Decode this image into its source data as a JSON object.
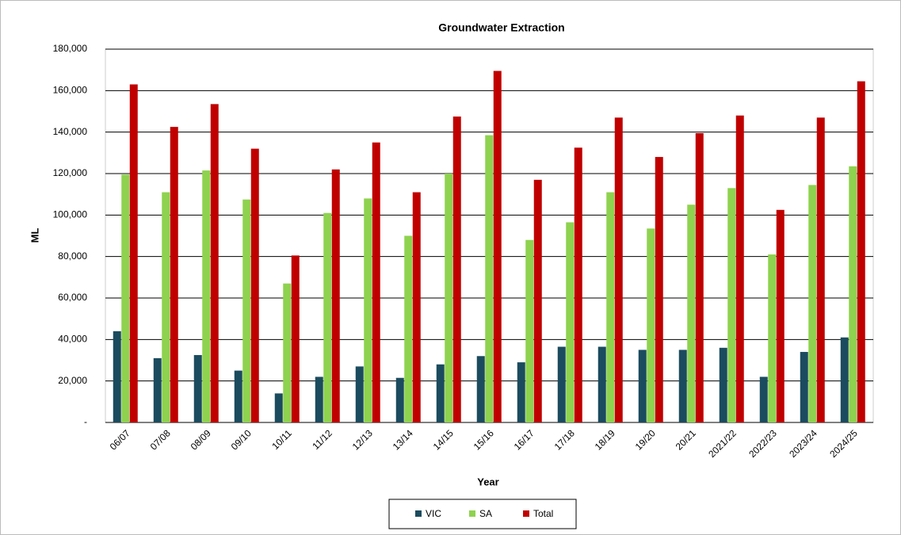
{
  "chart_data": {
    "type": "bar",
    "title": "Groundwater Extraction",
    "x_label": "Year",
    "y_label": "ML",
    "categories": [
      "06/07",
      "07/08",
      "08/09",
      "09/10",
      "10/11",
      "11/12",
      "12/13",
      "13/14",
      "14/15",
      "15/16",
      "16/17",
      "17/18",
      "18/19",
      "19/20",
      "20/21",
      "2021/22",
      "2022/23",
      "2023/24",
      "2024/25"
    ],
    "series": [
      {
        "name": "VIC",
        "color": "#1b4b5e",
        "values": [
          44000,
          31000,
          32500,
          25000,
          14000,
          22000,
          27000,
          21500,
          28000,
          32000,
          29000,
          36500,
          36500,
          35000,
          35000,
          36000,
          22000,
          34000,
          41000
        ]
      },
      {
        "name": "SA",
        "color": "#8ed24f",
        "values": [
          119500,
          111000,
          121500,
          107500,
          67000,
          101000,
          108000,
          90000,
          120000,
          138500,
          88000,
          96500,
          111000,
          93500,
          105000,
          113000,
          81000,
          114500,
          123500
        ]
      },
      {
        "name": "Total",
        "color": "#c00000",
        "values": [
          163000,
          142500,
          153500,
          132000,
          80500,
          122000,
          135000,
          111000,
          147500,
          169500,
          117000,
          132500,
          147000,
          128000,
          139500,
          148000,
          102500,
          147000,
          164500
        ]
      }
    ],
    "ylim": [
      0,
      180000
    ],
    "yticks": [
      {
        "value": 0,
        "label": "-"
      },
      {
        "value": 20000,
        "label": "20,000"
      },
      {
        "value": 40000,
        "label": "40,000"
      },
      {
        "value": 60000,
        "label": "60,000"
      },
      {
        "value": 80000,
        "label": "80,000"
      },
      {
        "value": 100000,
        "label": "100,000"
      },
      {
        "value": 120000,
        "label": "120,000"
      },
      {
        "value": 140000,
        "label": "140,000"
      },
      {
        "value": 160000,
        "label": "160,000"
      },
      {
        "value": 180000,
        "label": "180,000"
      }
    ],
    "grid": true,
    "legend": "bottom"
  }
}
